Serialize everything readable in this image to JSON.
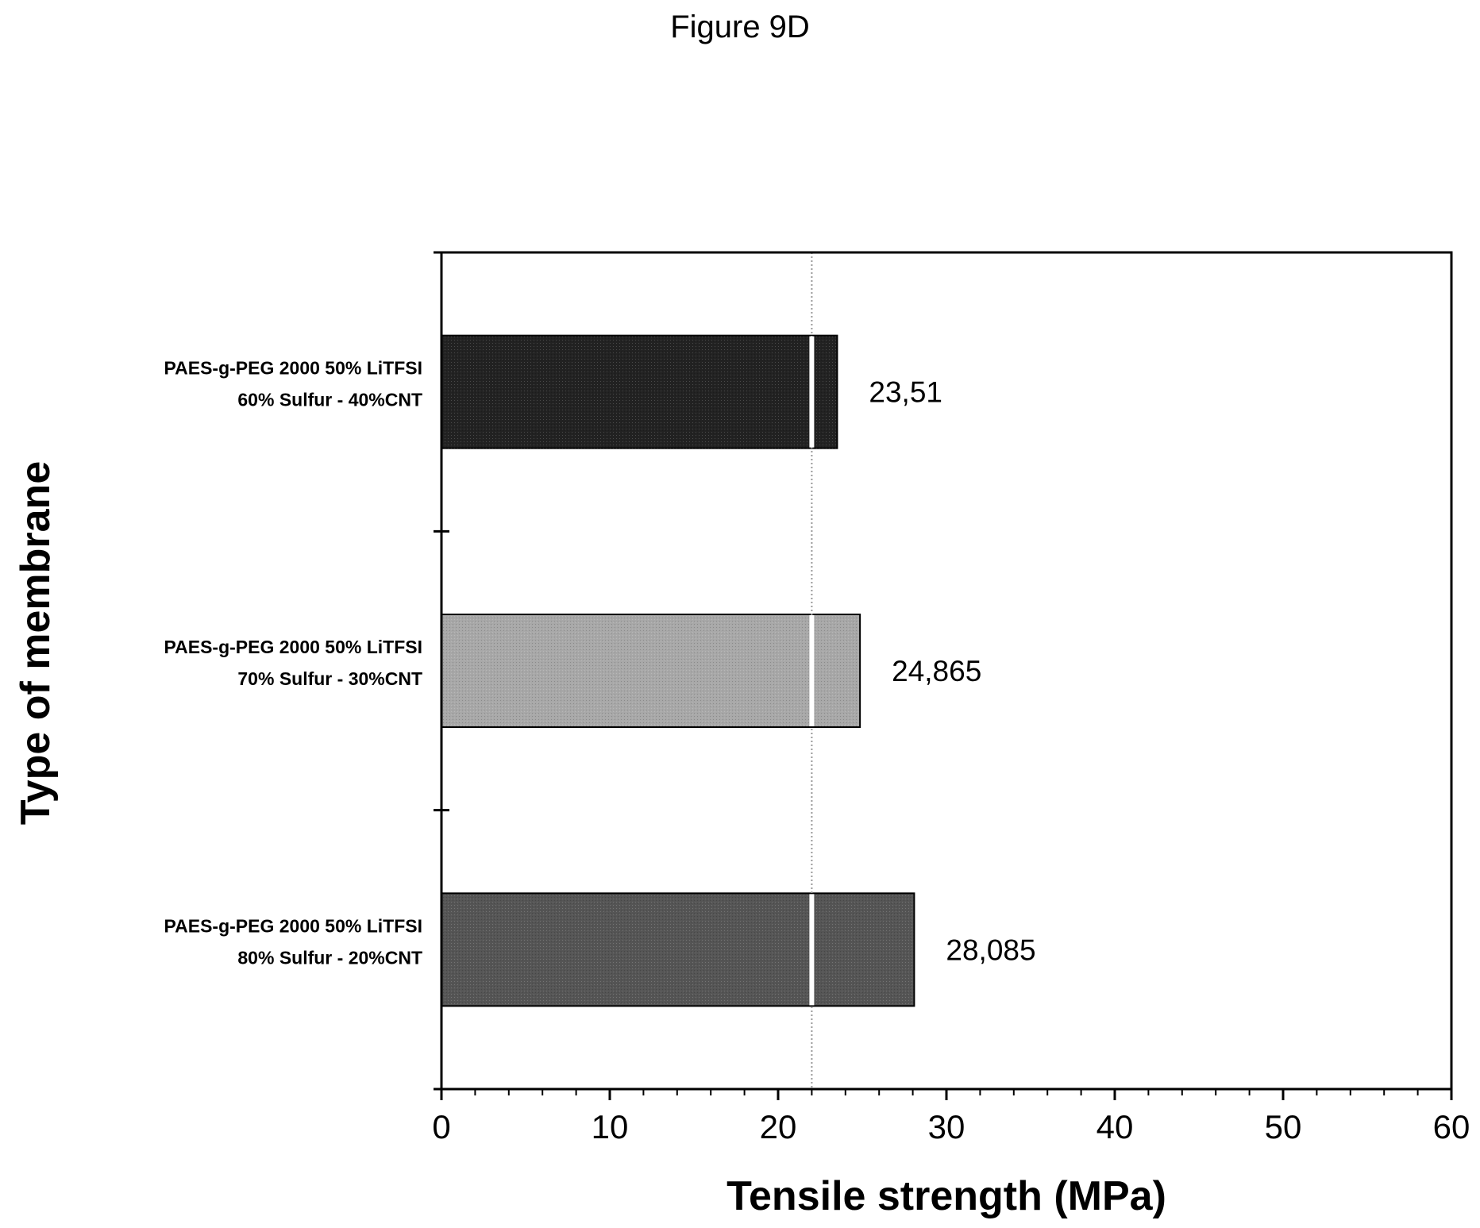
{
  "page": {
    "title": "Figure 9D"
  },
  "chart_data": {
    "type": "bar",
    "orientation": "horizontal",
    "categories": [
      [
        "PAES-g-PEG 2000 50% LiTFSI",
        "60% Sulfur - 40%CNT"
      ],
      [
        "PAES-g-PEG 2000 50% LiTFSI",
        "70% Sulfur - 30%CNT"
      ],
      [
        "PAES-g-PEG 2000 50% LiTFSI",
        "80% Sulfur - 20%CNT"
      ]
    ],
    "values": [
      23.51,
      24.865,
      28.085
    ],
    "value_labels": [
      "23,51",
      "24,865",
      "28,085"
    ],
    "bar_colors": [
      "#222222",
      "#a8a8a8",
      "#555555"
    ],
    "xlabel": "Tensile strength (MPa)",
    "ylabel": "Type of membrane",
    "xlim": [
      0,
      60
    ],
    "xticks": [
      0,
      10,
      20,
      30,
      40,
      50,
      60
    ],
    "reference_line_x": 22,
    "grid": false
  }
}
